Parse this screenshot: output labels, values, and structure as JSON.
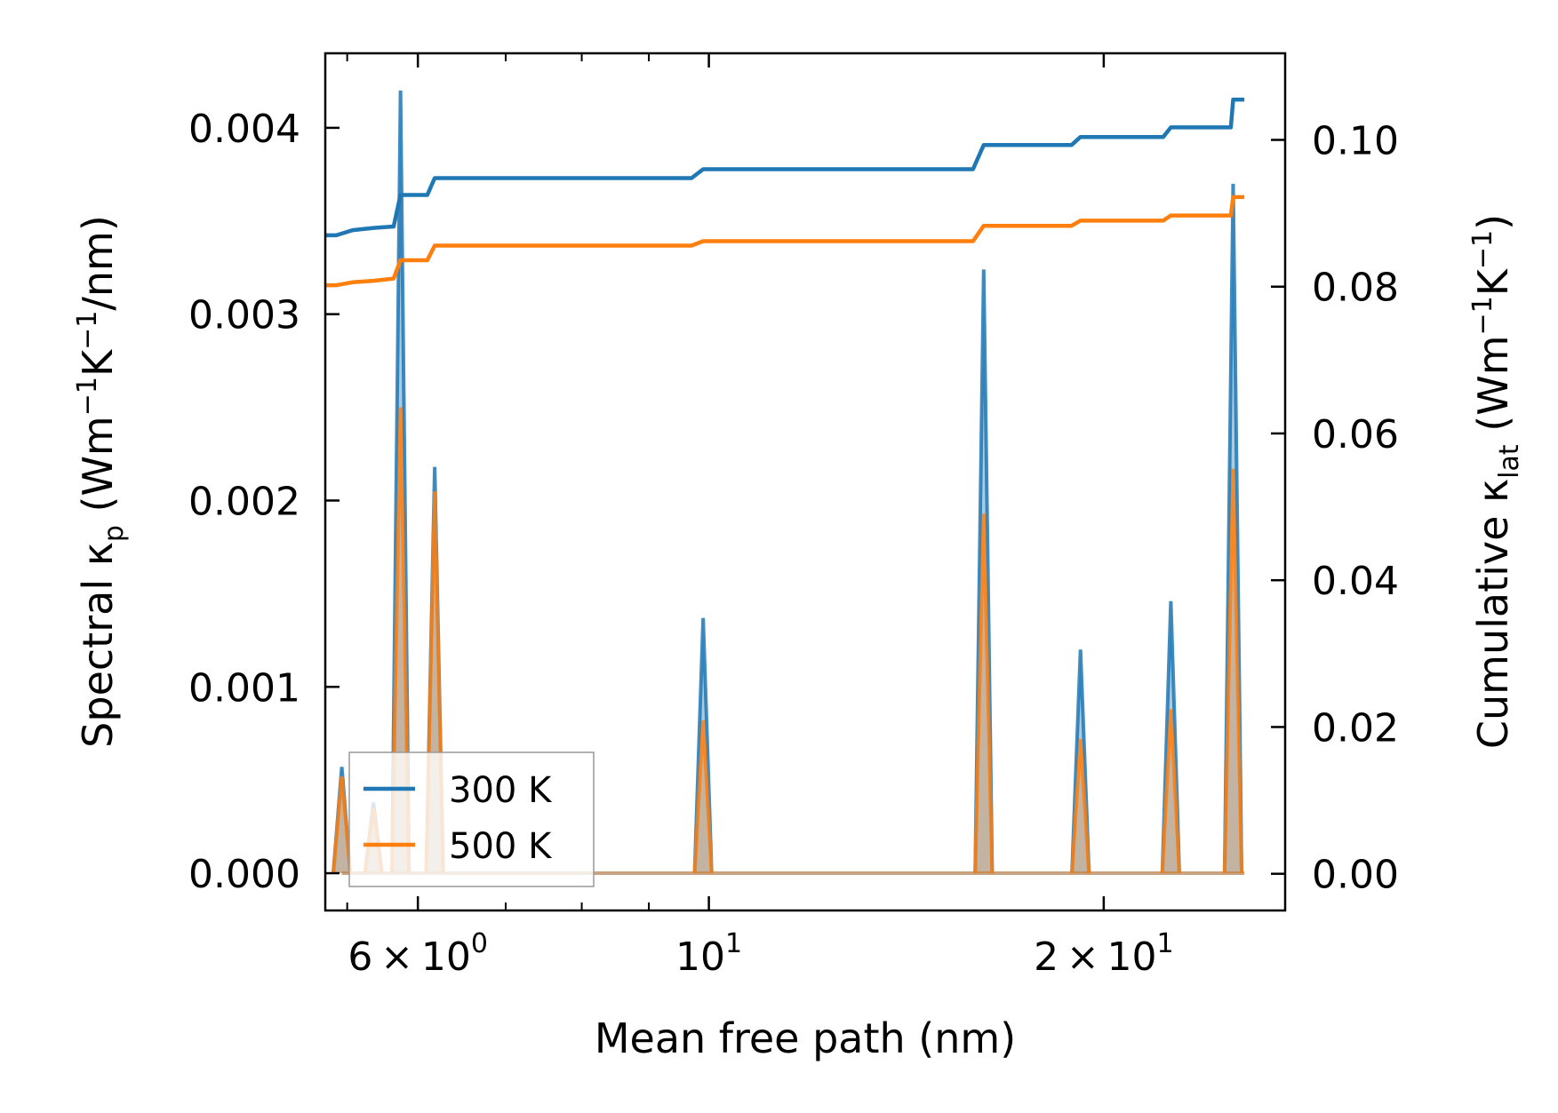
{
  "chart_data": {
    "type": "line",
    "x_scale": "log",
    "xlim": [
      5.1,
      27.5
    ],
    "xlabel": "Mean free path (nm)",
    "x_ticks": [
      {
        "value": 6,
        "mantissa": "6",
        "base": "10",
        "exponent": "0"
      },
      {
        "value": 10,
        "mantissa": "",
        "base": "10",
        "exponent": "1"
      },
      {
        "value": 20,
        "mantissa": "2",
        "base": "10",
        "exponent": "1"
      }
    ],
    "x_minor_ticks": [
      5.3,
      7,
      8,
      9,
      30
    ],
    "left_axis": {
      "label_parts": {
        "prefix": "Spectral κ",
        "sub": "p",
        "mid": " (Wm",
        "sup1": "−1",
        "k": "K",
        "sup2": "−1",
        "suffix": "/nm)"
      },
      "ylim": [
        -0.0002,
        0.0044
      ],
      "ticks": [
        0.0,
        0.001,
        0.002,
        0.003,
        0.004
      ],
      "tick_labels": [
        "0.000",
        "0.001",
        "0.002",
        "0.003",
        "0.004"
      ]
    },
    "right_axis": {
      "label_parts": {
        "prefix": "Cumulative κ",
        "sub": "lat",
        "mid": " (Wm",
        "sup1": "−1",
        "k": "K",
        "sup2": "−1",
        "suffix": ")"
      },
      "ylim": [
        -0.005,
        0.1118
      ],
      "ticks": [
        0.0,
        0.02,
        0.04,
        0.06,
        0.08,
        0.1
      ],
      "tick_labels": [
        "0.00",
        "0.02",
        "0.04",
        "0.06",
        "0.08",
        "0.10"
      ]
    },
    "spectral_series": [
      {
        "name": "300 K",
        "color": "#1f77b4",
        "peaks": [
          [
            5.25,
            0.00057
          ],
          [
            5.55,
            0.00038
          ],
          [
            5.82,
            0.0042
          ],
          [
            6.18,
            0.00218
          ],
          [
            9.9,
            0.00137
          ],
          [
            16.2,
            0.00324
          ],
          [
            19.2,
            0.0012
          ],
          [
            22.5,
            0.00146
          ],
          [
            25.1,
            0.0037
          ]
        ]
      },
      {
        "name": "500 K",
        "color": "#ff7f0e",
        "peaks": [
          [
            5.25,
            0.00052
          ],
          [
            5.55,
            0.00035
          ],
          [
            5.82,
            0.0025
          ],
          [
            6.18,
            0.00205
          ],
          [
            9.9,
            0.00082
          ],
          [
            16.2,
            0.00193
          ],
          [
            19.2,
            0.00072
          ],
          [
            22.5,
            0.00088
          ],
          [
            25.1,
            0.00217
          ]
        ]
      }
    ],
    "cumulative_series": [
      {
        "name": "300 K",
        "color": "#1f77b4",
        "x": [
          5.1,
          5.2,
          5.35,
          5.55,
          5.75,
          5.82,
          6.1,
          6.18,
          9.7,
          9.9,
          15.9,
          16.2,
          18.9,
          19.2,
          22.2,
          22.5,
          25.0,
          25.1,
          25.6
        ],
        "y": [
          0.087,
          0.087,
          0.0877,
          0.088,
          0.0882,
          0.0925,
          0.0925,
          0.0948,
          0.0948,
          0.096,
          0.096,
          0.0993,
          0.0993,
          0.1004,
          0.1004,
          0.1017,
          0.1017,
          0.1055,
          0.1055
        ]
      },
      {
        "name": "500 K",
        "color": "#ff7f0e",
        "x": [
          5.1,
          5.2,
          5.35,
          5.55,
          5.75,
          5.82,
          6.1,
          6.18,
          9.7,
          9.9,
          15.9,
          16.2,
          18.9,
          19.2,
          22.2,
          22.5,
          25.0,
          25.1,
          25.6
        ],
        "y": [
          0.0802,
          0.0802,
          0.0806,
          0.0808,
          0.0811,
          0.0836,
          0.0836,
          0.0856,
          0.0856,
          0.0862,
          0.0862,
          0.0883,
          0.0883,
          0.089,
          0.089,
          0.0897,
          0.0897,
          0.0922,
          0.0922
        ]
      }
    ],
    "legend": {
      "position": "lower-left",
      "entries": [
        {
          "label": "300 K",
          "color": "#1f77b4"
        },
        {
          "label": "500 K",
          "color": "#ff7f0e"
        }
      ]
    }
  }
}
